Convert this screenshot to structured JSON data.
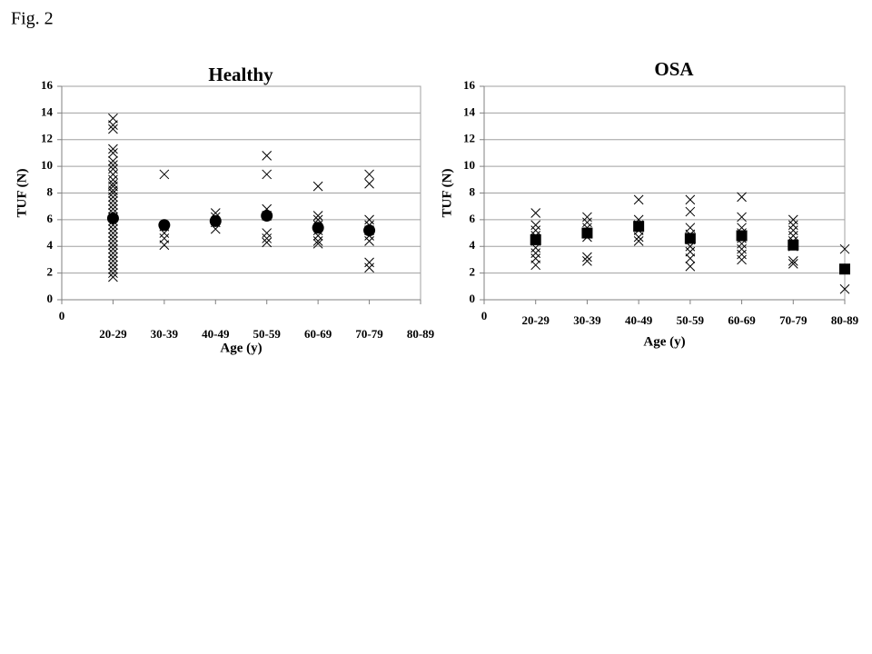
{
  "figure_label": "Fig. 2",
  "chart_data": [
    {
      "type": "scatter",
      "title": "Healthy",
      "x_label": "Age (y)",
      "y_label": "TUF (N)",
      "xlim": [
        0,
        7
      ],
      "xticks": [
        {
          "value": 0,
          "label": "0"
        },
        {
          "value": 1,
          "label": "20-29"
        },
        {
          "value": 2,
          "label": "30-39"
        },
        {
          "value": 3,
          "label": "40-49"
        },
        {
          "value": 4,
          "label": "50-59"
        },
        {
          "value": 5,
          "label": "60-69"
        },
        {
          "value": 6,
          "label": "70-79"
        },
        {
          "value": 7,
          "label": "80-89"
        }
      ],
      "ylim": [
        0,
        16
      ],
      "yticks": [
        0,
        2,
        4,
        6,
        8,
        10,
        12,
        14,
        16
      ],
      "grid": true,
      "series": [
        {
          "marker": "x",
          "color": "#000000",
          "x": [
            1,
            1,
            1,
            1,
            1,
            1,
            1,
            1,
            1,
            1,
            1,
            1,
            1,
            1,
            1,
            1,
            1,
            1,
            1,
            1,
            1,
            1,
            1,
            1,
            1,
            1,
            1,
            1,
            1,
            1,
            1,
            1,
            1,
            1,
            1,
            2,
            2,
            2,
            2,
            2,
            3,
            3,
            3,
            3,
            4,
            4,
            4,
            4,
            4,
            4,
            4,
            5,
            5,
            5,
            5,
            5,
            5,
            5,
            5,
            6,
            6,
            6,
            6,
            6,
            6,
            6,
            6,
            6
          ],
          "values": [
            13.6,
            13.1,
            12.8,
            11.3,
            11.0,
            10.4,
            10.1,
            9.8,
            9.4,
            9.0,
            8.7,
            8.5,
            8.2,
            8.0,
            7.7,
            7.4,
            7.1,
            6.8,
            6.5,
            6.2,
            5.9,
            5.6,
            5.3,
            5.0,
            4.7,
            4.4,
            4.1,
            3.8,
            3.5,
            3.2,
            2.9,
            2.6,
            2.3,
            2.0,
            1.7,
            9.4,
            5.5,
            5.0,
            4.6,
            4.1,
            6.5,
            6.2,
            5.8,
            5.3,
            10.8,
            9.4,
            6.8,
            6.3,
            5.0,
            4.6,
            4.3,
            8.5,
            6.3,
            6.0,
            5.6,
            5.2,
            4.8,
            4.4,
            4.2,
            9.4,
            8.7,
            6.0,
            5.6,
            5.2,
            4.8,
            4.4,
            2.8,
            2.4
          ]
        },
        {
          "marker": "circle",
          "color": "#000000",
          "x": [
            1,
            2,
            3,
            4,
            5,
            6
          ],
          "values": [
            6.1,
            5.6,
            5.9,
            6.3,
            5.4,
            5.2
          ]
        }
      ]
    },
    {
      "type": "scatter",
      "title": "OSA",
      "x_label": "Age (y)",
      "y_label": "TUF (N)",
      "xlim": [
        0,
        7
      ],
      "xticks": [
        {
          "value": 0,
          "label": "0"
        },
        {
          "value": 1,
          "label": "20-29"
        },
        {
          "value": 2,
          "label": "30-39"
        },
        {
          "value": 3,
          "label": "40-49"
        },
        {
          "value": 4,
          "label": "50-59"
        },
        {
          "value": 5,
          "label": "60-69"
        },
        {
          "value": 6,
          "label": "70-79"
        },
        {
          "value": 7,
          "label": "80-89"
        }
      ],
      "ylim": [
        0,
        16
      ],
      "yticks": [
        0,
        2,
        4,
        6,
        8,
        10,
        12,
        14,
        16
      ],
      "grid": true,
      "series": [
        {
          "marker": "x",
          "color": "#000000",
          "x": [
            1,
            1,
            1,
            1,
            1,
            1,
            1,
            1,
            1,
            2,
            2,
            2,
            2,
            2,
            2,
            2,
            3,
            3,
            3,
            3,
            3,
            3,
            4,
            4,
            4,
            4,
            4,
            4,
            4,
            4,
            4,
            5,
            5,
            5,
            5,
            5,
            5,
            5,
            5,
            5,
            6,
            6,
            6,
            6,
            6,
            6,
            6,
            6,
            7,
            7
          ],
          "values": [
            6.5,
            5.6,
            5.2,
            4.8,
            4.4,
            3.9,
            3.5,
            3.1,
            2.6,
            6.2,
            5.8,
            5.4,
            5.0,
            4.7,
            3.2,
            2.9,
            7.5,
            6.0,
            5.6,
            5.2,
            4.7,
            4.4,
            7.5,
            6.6,
            5.4,
            4.9,
            4.5,
            4.0,
            3.6,
            3.1,
            2.5,
            7.7,
            6.2,
            5.4,
            5.0,
            4.6,
            4.2,
            3.8,
            3.4,
            3.0,
            6.0,
            5.6,
            5.2,
            4.8,
            4.4,
            4.0,
            2.9,
            2.7,
            3.8,
            0.8
          ]
        },
        {
          "marker": "square",
          "color": "#000000",
          "x": [
            1,
            2,
            3,
            4,
            5,
            6,
            7
          ],
          "values": [
            4.5,
            5.0,
            5.5,
            4.6,
            4.8,
            4.1,
            2.3
          ]
        }
      ]
    }
  ]
}
